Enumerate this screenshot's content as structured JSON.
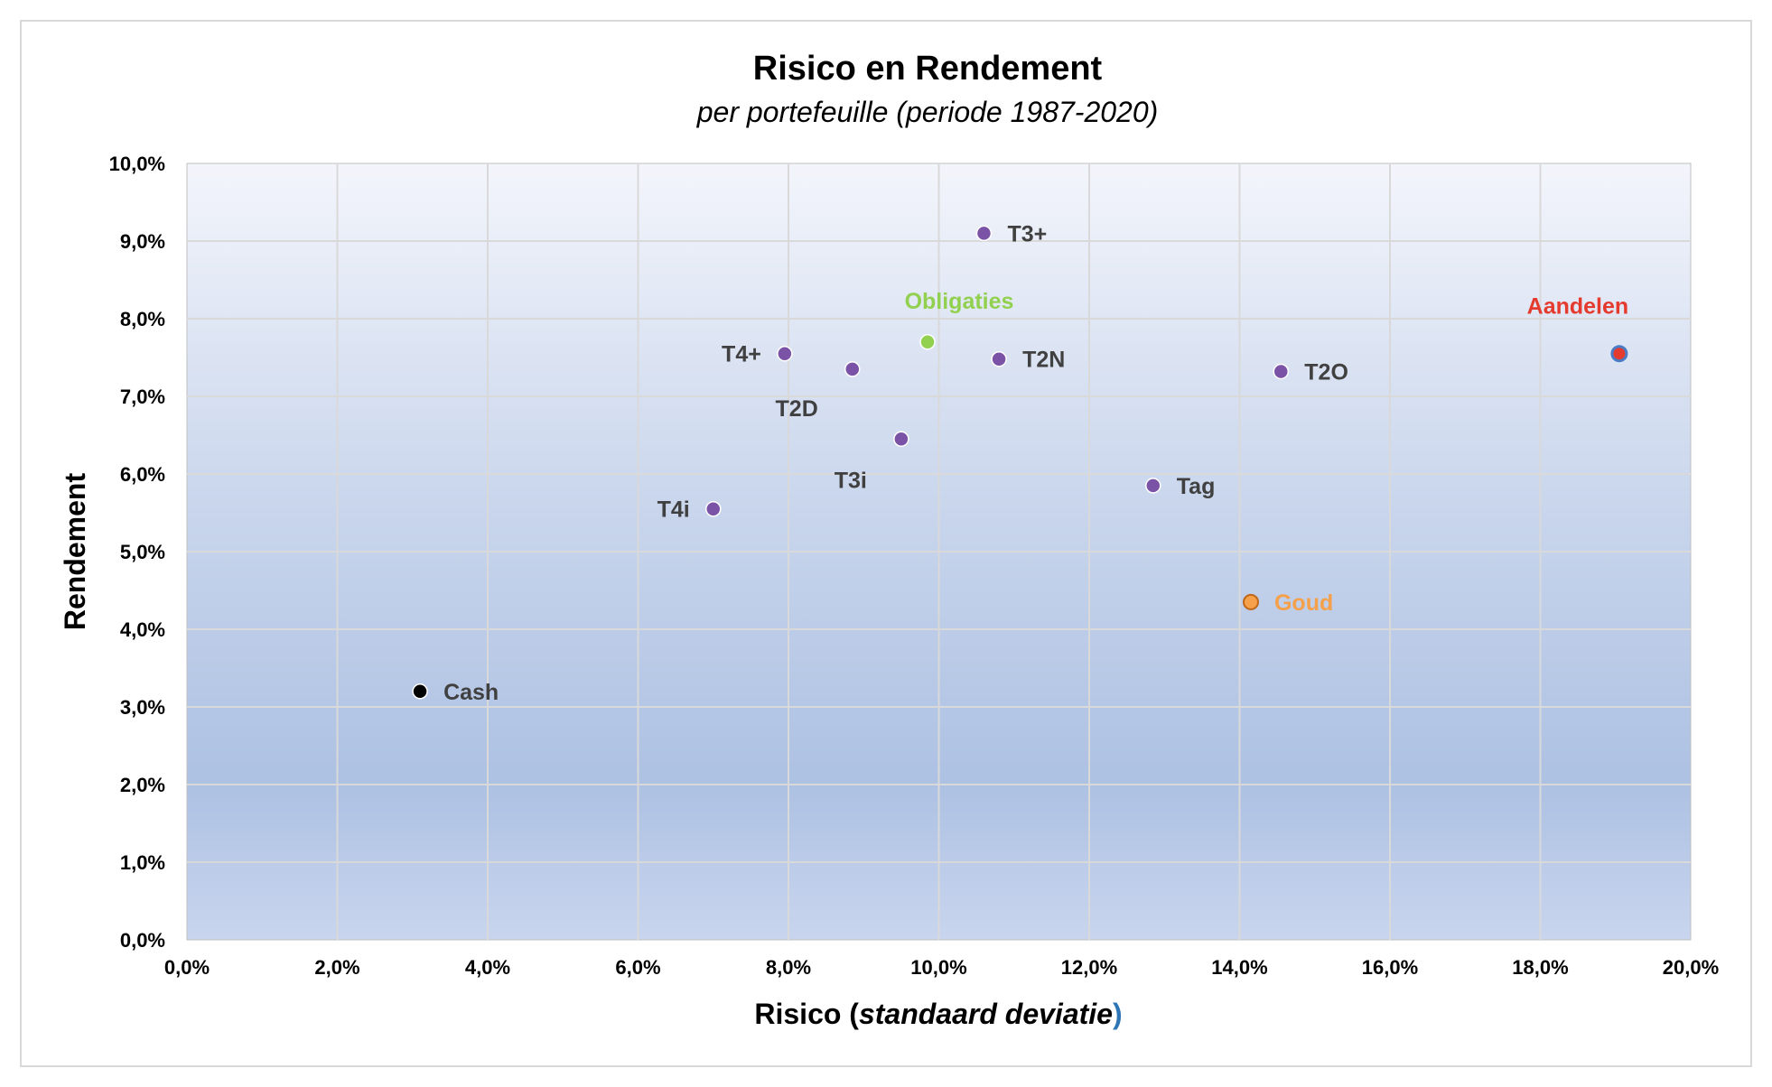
{
  "chart_data": {
    "type": "scatter",
    "title": "Risico en Rendement",
    "subtitle": "per portefeuille (periode 1987-2020)",
    "xlabel": {
      "prefix": "Risico ",
      "open_paren": "(",
      "italic": "standaard deviatie",
      "close_paren": ")"
    },
    "ylabel": "Rendement",
    "xlim": [
      0,
      20
    ],
    "ylim": [
      0,
      10
    ],
    "x_ticks": [
      "0,0%",
      "2,0%",
      "4,0%",
      "6,0%",
      "8,0%",
      "10,0%",
      "12,0%",
      "14,0%",
      "16,0%",
      "18,0%",
      "20,0%"
    ],
    "y_ticks": [
      "0,0%",
      "1,0%",
      "2,0%",
      "3,0%",
      "4,0%",
      "5,0%",
      "6,0%",
      "7,0%",
      "8,0%",
      "9,0%",
      "10,0%"
    ],
    "grid": true,
    "points": [
      {
        "label": "Cash",
        "x": 3.1,
        "y": 3.2,
        "color": "#000000",
        "label_color": "#404040",
        "label_pos": "right"
      },
      {
        "label": "T4i",
        "x": 7.0,
        "y": 5.55,
        "color": "#7a52a6",
        "label_color": "#404040",
        "label_pos": "left"
      },
      {
        "label": "T4+",
        "x": 7.95,
        "y": 7.55,
        "color": "#7a52a6",
        "label_color": "#404040",
        "label_pos": "left"
      },
      {
        "label": "T2D",
        "x": 8.85,
        "y": 7.35,
        "color": "#7a52a6",
        "label_color": "#404040",
        "label_pos": "below-left"
      },
      {
        "label": "T3i",
        "x": 9.5,
        "y": 6.45,
        "color": "#7a52a6",
        "label_color": "#404040",
        "label_pos": "below-left"
      },
      {
        "label": "Obligaties",
        "x": 9.85,
        "y": 7.7,
        "color": "#92d050",
        "label_color": "#92d050",
        "label_pos": "above"
      },
      {
        "label": "T3+",
        "x": 10.6,
        "y": 9.1,
        "color": "#7a52a6",
        "label_color": "#404040",
        "label_pos": "right"
      },
      {
        "label": "T2N",
        "x": 10.8,
        "y": 7.48,
        "color": "#7a52a6",
        "label_color": "#404040",
        "label_pos": "right"
      },
      {
        "label": "Tag",
        "x": 12.85,
        "y": 5.85,
        "color": "#7a52a6",
        "label_color": "#404040",
        "label_pos": "right"
      },
      {
        "label": "Goud",
        "x": 14.15,
        "y": 4.35,
        "color": "#f5a04a",
        "label_color": "#f5a04a",
        "label_pos": "right"
      },
      {
        "label": "T2O",
        "x": 14.55,
        "y": 7.32,
        "color": "#7a52a6",
        "label_color": "#404040",
        "label_pos": "right"
      },
      {
        "label": "Aandelen",
        "x": 19.05,
        "y": 7.55,
        "color": "#e53b2f",
        "label_color": "#e53b2f",
        "label_pos": "above-left"
      }
    ]
  }
}
